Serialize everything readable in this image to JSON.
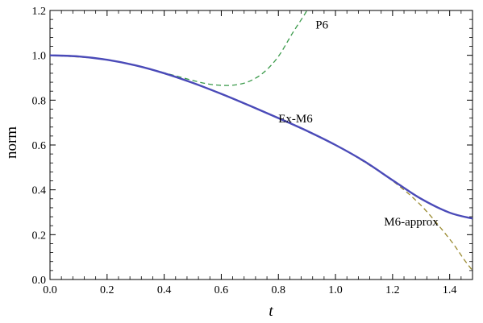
{
  "chart_data": {
    "type": "line",
    "title": "",
    "xlabel": "t",
    "ylabel": "norm",
    "xlim": [
      0.0,
      1.48
    ],
    "ylim": [
      0.0,
      1.2
    ],
    "grid": false,
    "x_ticks": [
      "0.0",
      "0.2",
      "0.4",
      "0.6",
      "0.8",
      "1.0",
      "1.2",
      "1.4"
    ],
    "y_ticks": [
      "0.0",
      "0.2",
      "0.4",
      "0.6",
      "0.8",
      "1.0",
      "1.2"
    ],
    "series": [
      {
        "name": "Ex-M6",
        "color": "#4a4ab8",
        "style": "solid",
        "x": [
          0.0,
          0.1,
          0.2,
          0.3,
          0.4,
          0.5,
          0.6,
          0.7,
          0.8,
          0.9,
          1.0,
          1.1,
          1.2,
          1.3,
          1.4,
          1.48
        ],
        "y": [
          1.0,
          0.995,
          0.98,
          0.955,
          0.92,
          0.877,
          0.828,
          0.775,
          0.72,
          0.663,
          0.6,
          0.528,
          0.443,
          0.36,
          0.298,
          0.272
        ]
      },
      {
        "name": "P6",
        "color": "#3a9a4a",
        "style": "dashed",
        "x": [
          0.0,
          0.1,
          0.2,
          0.3,
          0.4,
          0.45,
          0.5,
          0.55,
          0.6,
          0.65,
          0.7,
          0.75,
          0.8,
          0.85,
          0.9,
          0.91
        ],
        "y": [
          1.0,
          0.995,
          0.98,
          0.955,
          0.922,
          0.905,
          0.888,
          0.873,
          0.866,
          0.868,
          0.885,
          0.925,
          0.995,
          1.1,
          1.2,
          1.24
        ]
      },
      {
        "name": "M6-approx",
        "color": "#9a8a30",
        "style": "dashed",
        "x": [
          0.0,
          0.2,
          0.4,
          0.6,
          0.8,
          1.0,
          1.1,
          1.2,
          1.3,
          1.4,
          1.45,
          1.48
        ],
        "y": [
          1.0,
          0.98,
          0.92,
          0.828,
          0.72,
          0.6,
          0.525,
          0.44,
          0.33,
          0.18,
          0.09,
          0.04
        ]
      }
    ],
    "annotations": [
      {
        "text": "P6",
        "x": 0.93,
        "y": 1.12
      },
      {
        "text": "Ex-M6",
        "x": 0.8,
        "y": 0.7
      },
      {
        "text": "M6-approx",
        "x": 1.17,
        "y": 0.24
      }
    ]
  }
}
